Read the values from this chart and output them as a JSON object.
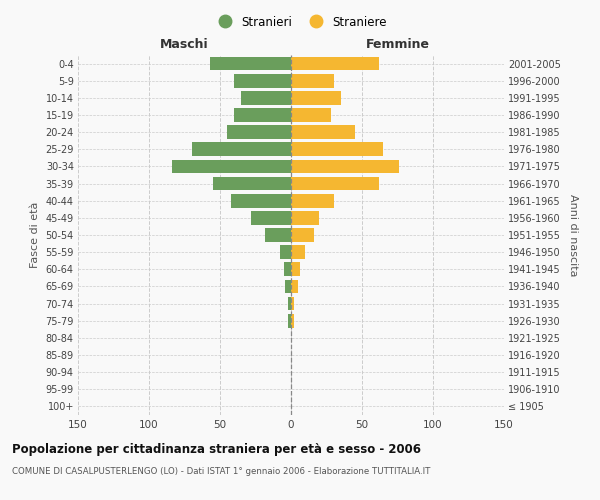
{
  "age_groups": [
    "100+",
    "95-99",
    "90-94",
    "85-89",
    "80-84",
    "75-79",
    "70-74",
    "65-69",
    "60-64",
    "55-59",
    "50-54",
    "45-49",
    "40-44",
    "35-39",
    "30-34",
    "25-29",
    "20-24",
    "15-19",
    "10-14",
    "5-9",
    "0-4"
  ],
  "birth_years": [
    "≤ 1905",
    "1906-1910",
    "1911-1915",
    "1916-1920",
    "1921-1925",
    "1926-1930",
    "1931-1935",
    "1936-1940",
    "1941-1945",
    "1946-1950",
    "1951-1955",
    "1956-1960",
    "1961-1965",
    "1966-1970",
    "1971-1975",
    "1976-1980",
    "1981-1985",
    "1986-1990",
    "1991-1995",
    "1996-2000",
    "2001-2005"
  ],
  "males": [
    0,
    0,
    0,
    0,
    0,
    2,
    2,
    4,
    5,
    8,
    18,
    28,
    42,
    55,
    84,
    70,
    45,
    40,
    35,
    40,
    57
  ],
  "females": [
    0,
    0,
    0,
    0,
    0,
    2,
    2,
    5,
    6,
    10,
    16,
    20,
    30,
    62,
    76,
    65,
    45,
    28,
    35,
    30,
    62
  ],
  "male_color": "#6a9e5c",
  "female_color": "#f5b731",
  "title": "Popolazione per cittadinanza straniera per età e sesso - 2006",
  "subtitle": "COMUNE DI CASALPUSTERLENGO (LO) - Dati ISTAT 1° gennaio 2006 - Elaborazione TUTTITALIA.IT",
  "label_left": "Maschi",
  "label_right": "Femmine",
  "ylabel_left": "Fasce di età",
  "ylabel_right": "Anni di nascita",
  "legend_male": "Stranieri",
  "legend_female": "Straniere",
  "xlim": 150,
  "bg_color": "#f9f9f9",
  "grid_color": "#cccccc",
  "bar_height": 0.8
}
